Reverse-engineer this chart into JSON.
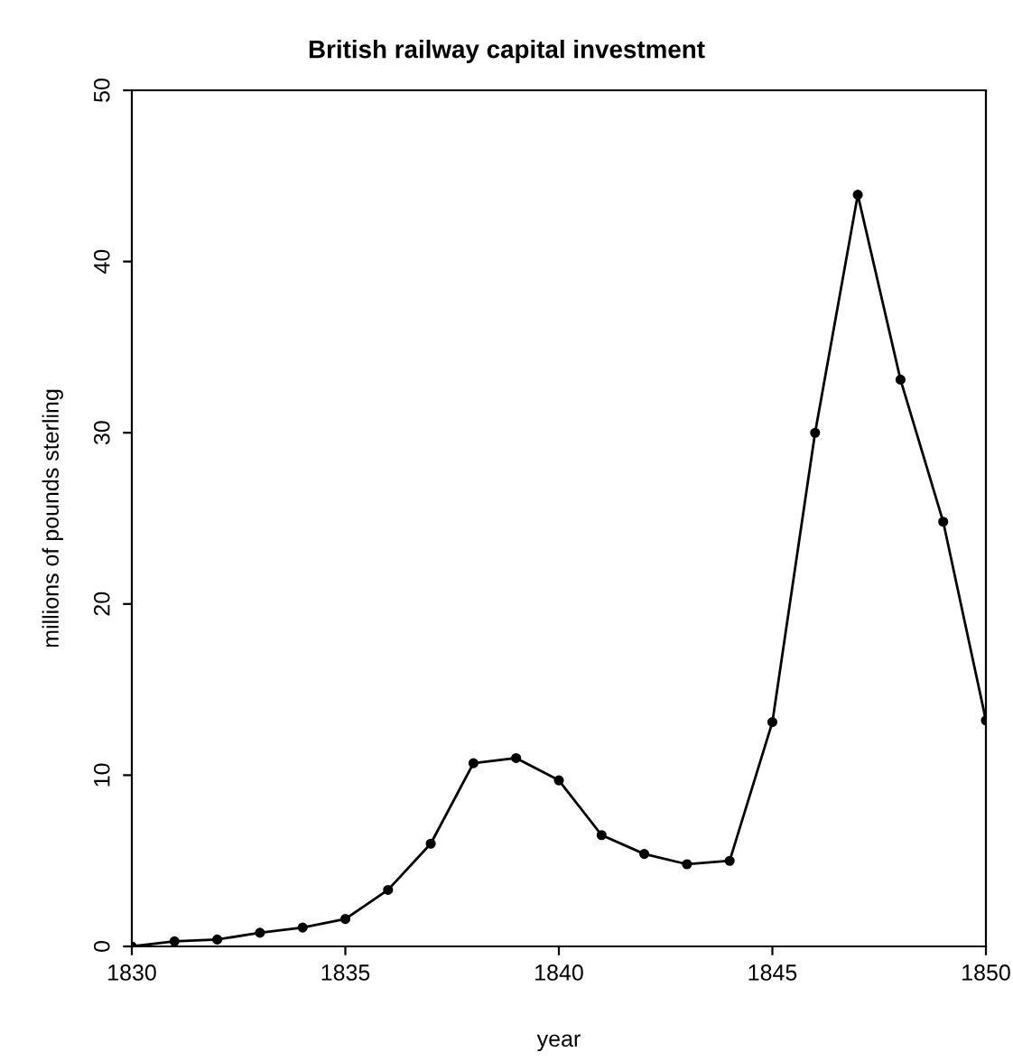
{
  "chart_data": {
    "type": "line",
    "title": "British railway capital investment",
    "xlabel": "year",
    "ylabel": "millions of pounds sterling",
    "x": [
      1830,
      1831,
      1832,
      1833,
      1834,
      1835,
      1836,
      1837,
      1838,
      1839,
      1840,
      1841,
      1842,
      1843,
      1844,
      1845,
      1846,
      1847,
      1848,
      1849,
      1850
    ],
    "series": [
      {
        "color": "#000000",
        "values": [
          0,
          0.3,
          0.4,
          0.8,
          1.1,
          1.6,
          3.3,
          6.0,
          10.7,
          11.0,
          9.7,
          6.5,
          5.4,
          4.8,
          5.0,
          13.1,
          30.0,
          43.9,
          33.1,
          24.8,
          13.2
        ]
      }
    ],
    "xlim": [
      1830,
      1850
    ],
    "ylim": [
      0,
      50
    ],
    "xticks": [
      1830,
      1835,
      1840,
      1845,
      1850
    ],
    "yticks": [
      0,
      10,
      20,
      30,
      40,
      50
    ],
    "marker": "circle",
    "line_style": "solid",
    "grid": false,
    "legend": false
  }
}
